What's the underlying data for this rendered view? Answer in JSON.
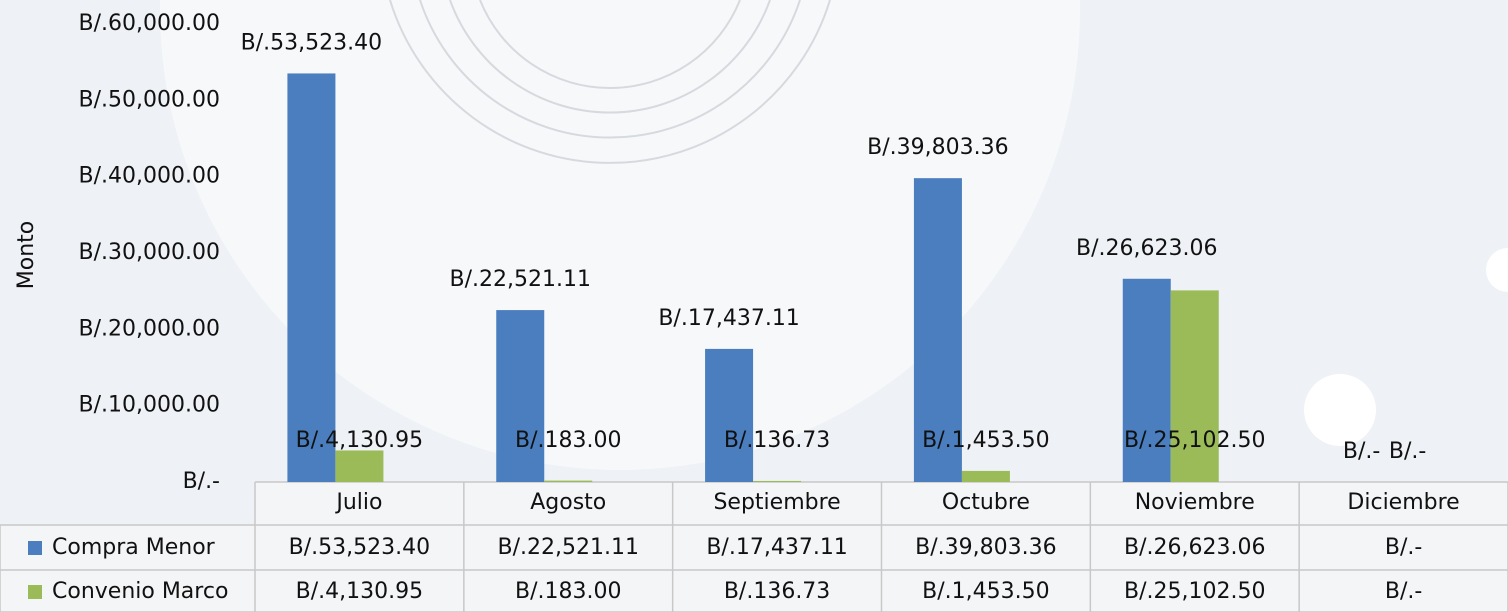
{
  "chart_data": {
    "type": "bar",
    "y_label": "Monto",
    "categories": [
      "Julio",
      "Agosto",
      "Septiembre",
      "Octubre",
      "Noviembre",
      "Diciembre"
    ],
    "series": [
      {
        "name": "Compra Menor",
        "color": "#4a7ebf",
        "values": [
          53523.4,
          22521.11,
          17437.11,
          39803.36,
          26623.06,
          0
        ],
        "value_labels": [
          "B/.53,523.40",
          "B/.22,521.11",
          "B/.17,437.11",
          "B/.39,803.36",
          "B/.26,623.06",
          "B/.-"
        ]
      },
      {
        "name": "Convenio Marco",
        "color": "#9bbb59",
        "values": [
          4130.95,
          183.0,
          136.73,
          1453.5,
          25102.5,
          0
        ],
        "value_labels": [
          "B/.4,130.95",
          "B/.183.00",
          "B/.136.73",
          "B/.1,453.50",
          "B/.25,102.50",
          "B/.-"
        ]
      }
    ],
    "ylim": [
      0,
      60000
    ],
    "yticks": [
      {
        "value": 0,
        "label": "B/.-"
      },
      {
        "value": 10000,
        "label": "B/.10,000.00"
      },
      {
        "value": 20000,
        "label": "B/.20,000.00"
      },
      {
        "value": 30000,
        "label": "B/.30,000.00"
      },
      {
        "value": 40000,
        "label": "B/.40,000.00"
      },
      {
        "value": 50000,
        "label": "B/.50,000.00"
      },
      {
        "value": 60000,
        "label": "B/.60,000.00"
      }
    ],
    "grid": false
  }
}
